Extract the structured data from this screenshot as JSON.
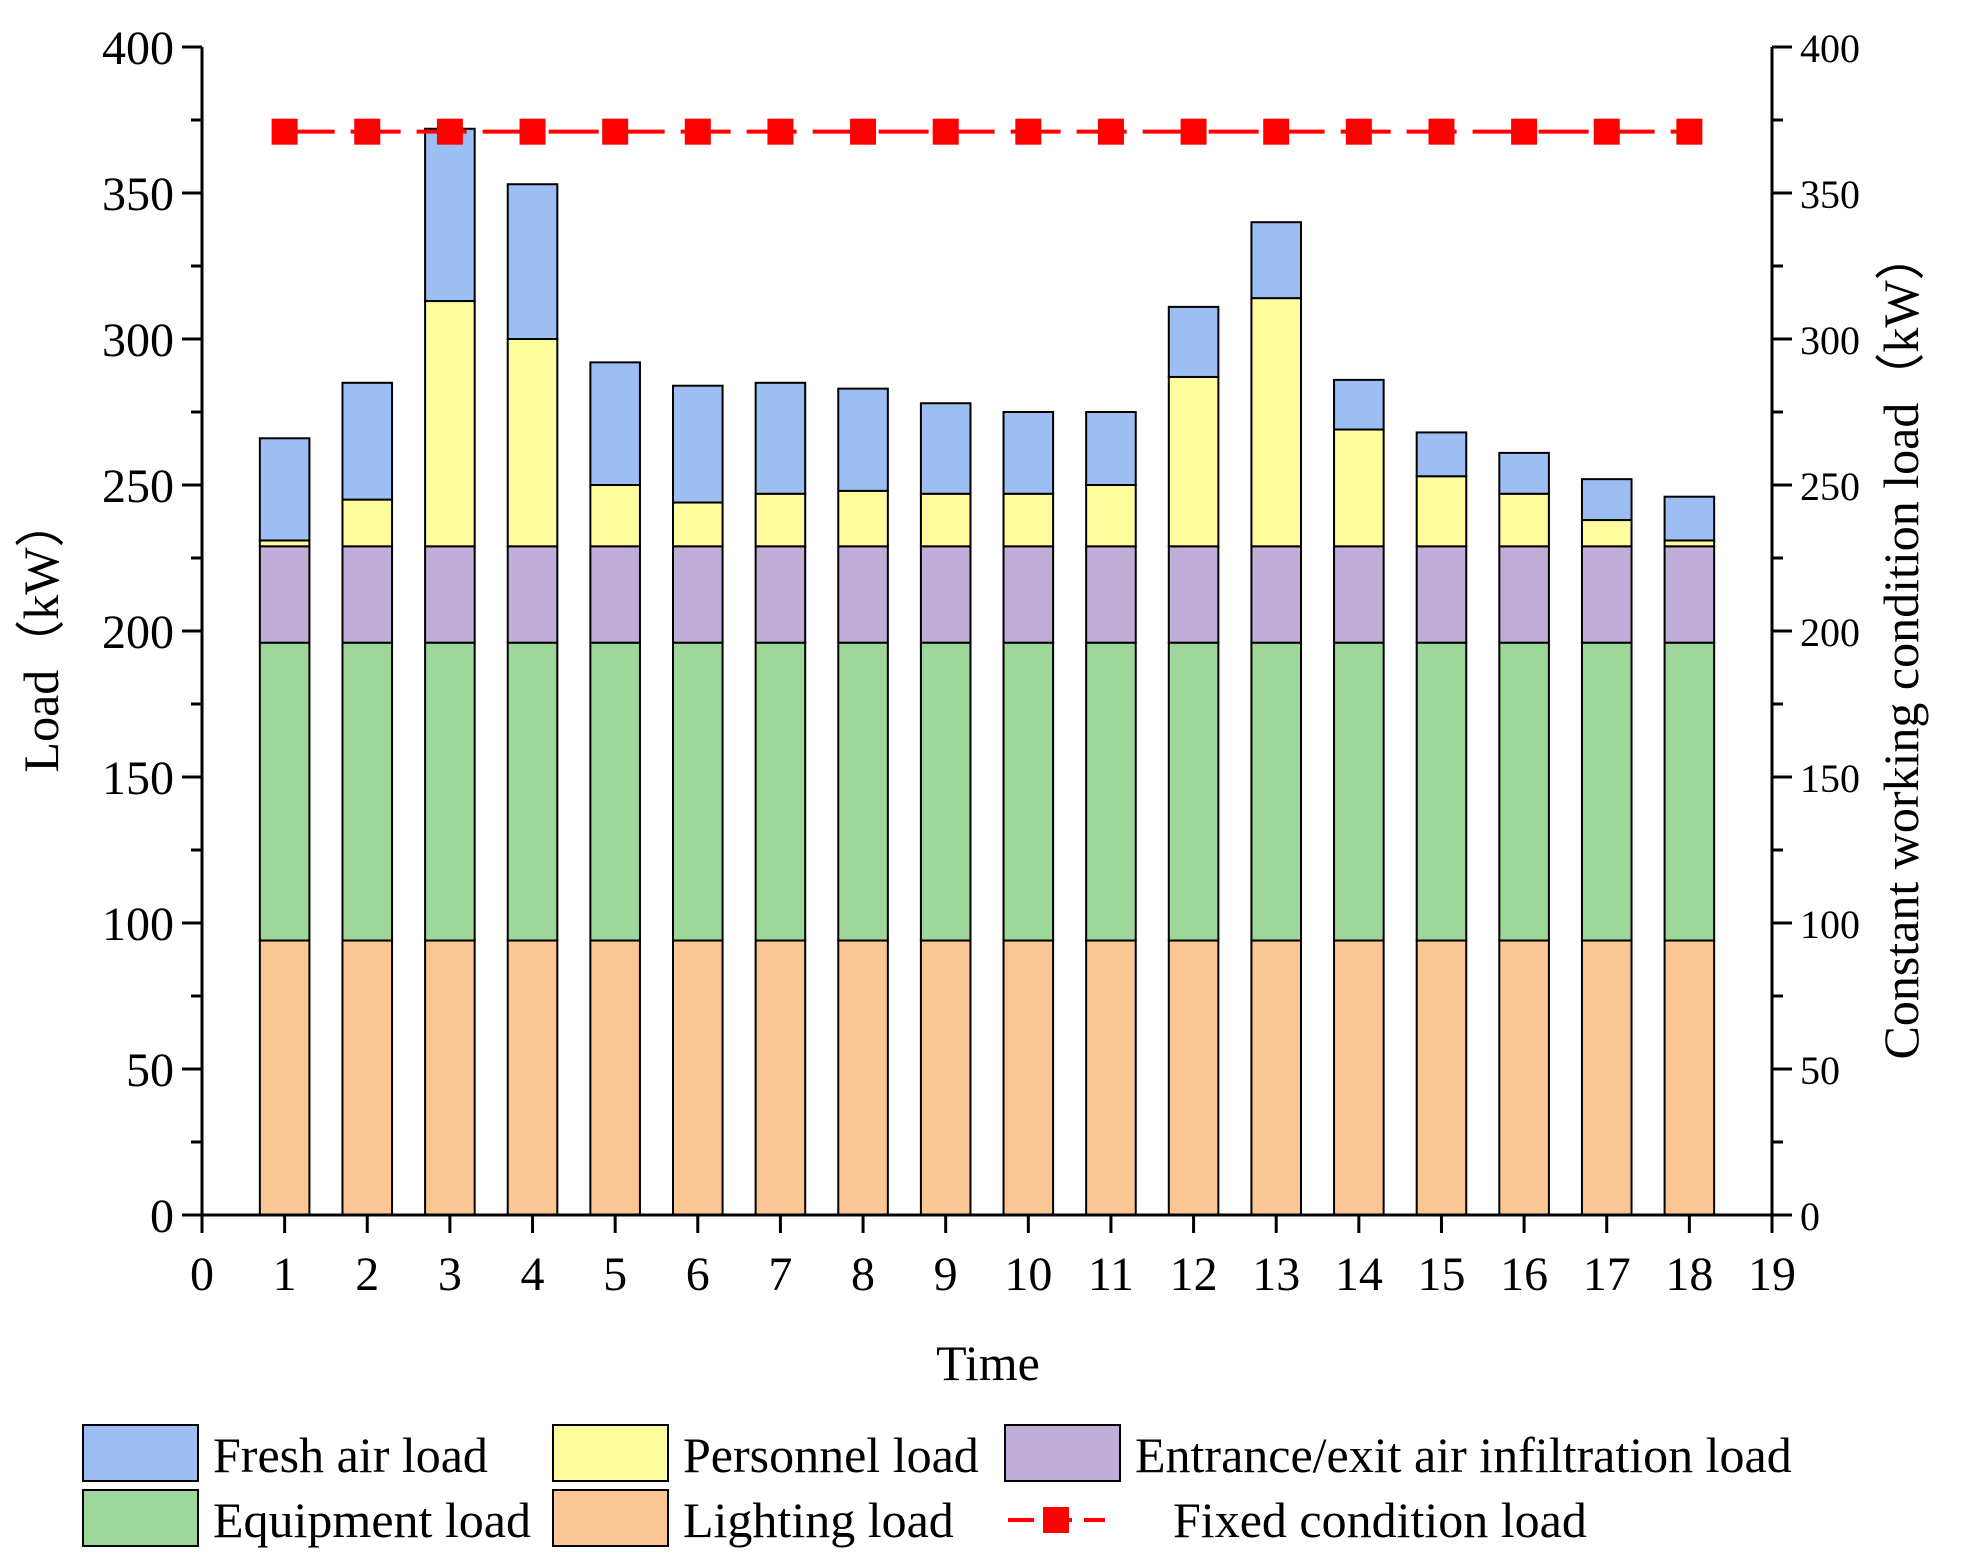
{
  "chart_data": {
    "type": "bar",
    "stacked": true,
    "title": "",
    "xlabel": "Time",
    "ylabel": "Load（kW）",
    "y2label": "Constant working condition load（kW）",
    "xlim": [
      0,
      19
    ],
    "ylim": [
      0,
      400
    ],
    "y2lim": [
      0,
      400
    ],
    "x_ticks": [
      "0",
      "1",
      "2",
      "3",
      "4",
      "5",
      "6",
      "7",
      "8",
      "9",
      "10",
      "11",
      "12",
      "13",
      "14",
      "15",
      "16",
      "17",
      "18",
      "19"
    ],
    "y_ticks": [
      "0",
      "50",
      "100",
      "150",
      "200",
      "250",
      "300",
      "350",
      "400"
    ],
    "y2_ticks": [
      "0",
      "50",
      "100",
      "150",
      "200",
      "250",
      "300",
      "350",
      "400"
    ],
    "categories": [
      1,
      2,
      3,
      4,
      5,
      6,
      7,
      8,
      9,
      10,
      11,
      12,
      13,
      14,
      15,
      16,
      17,
      18
    ],
    "series": [
      {
        "name": "Lighting load",
        "color": "#F9C694",
        "values": [
          94,
          94,
          94,
          94,
          94,
          94,
          94,
          94,
          94,
          94,
          94,
          94,
          94,
          94,
          94,
          94,
          94,
          94
        ]
      },
      {
        "name": "Equipment load",
        "color": "#9ED79A",
        "values": [
          102,
          102,
          102,
          102,
          102,
          102,
          102,
          102,
          102,
          102,
          102,
          102,
          102,
          102,
          102,
          102,
          102,
          102
        ]
      },
      {
        "name": "Entrance/exit air infiltration load",
        "color": "#C0AED8",
        "values": [
          33,
          33,
          33,
          33,
          33,
          33,
          33,
          33,
          33,
          33,
          33,
          33,
          33,
          33,
          33,
          33,
          33,
          33
        ]
      },
      {
        "name": "Personnel load",
        "color": "#FDFD9E",
        "values": [
          2,
          16,
          84,
          71,
          21,
          15,
          18,
          19,
          18,
          18,
          21,
          58,
          85,
          40,
          24,
          18,
          9,
          2
        ]
      },
      {
        "name": "Fresh air load",
        "color": "#9DBEF2",
        "values": [
          35,
          40,
          59,
          53,
          42,
          40,
          38,
          35,
          31,
          28,
          25,
          24,
          26,
          17,
          15,
          14,
          14,
          15
        ]
      }
    ],
    "line_series": {
      "name": "Fixed condition load",
      "color": "#FF0000",
      "axis": "right",
      "x": [
        1,
        2,
        3,
        4,
        5,
        6,
        7,
        8,
        9,
        10,
        11,
        12,
        13,
        14,
        15,
        16,
        17,
        18
      ],
      "values": [
        371,
        371,
        371,
        371,
        371,
        371,
        371,
        371,
        371,
        371,
        371,
        371,
        371,
        371,
        371,
        371,
        371,
        371
      ]
    },
    "legend": {
      "placement": "bottom",
      "entries": [
        "Fresh air load",
        "Personnel load",
        "Entrance/exit air infiltration load",
        "Equipment load",
        "Lighting load",
        "Fixed condition load"
      ]
    }
  }
}
